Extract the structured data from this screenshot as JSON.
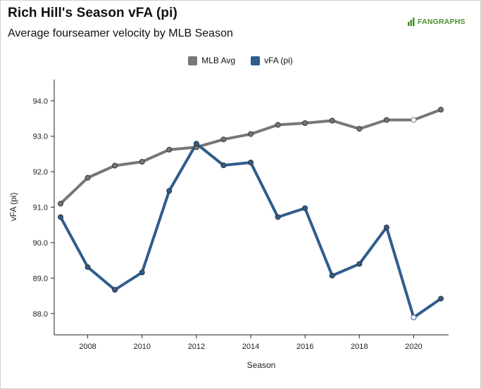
{
  "header": {
    "title": "Rich Hill's Season vFA (pi)",
    "subtitle": "Average fourseamer velocity by MLB Season",
    "brand": "FANGRAPHS"
  },
  "colors": {
    "mlb": "#777777",
    "player": "#2f5d8c",
    "brand": "#4a8f2a"
  },
  "chart_data": {
    "type": "line",
    "xlabel": "Season",
    "ylabel": "vFA (pi)",
    "xlim": [
      2007,
      2021
    ],
    "ylim": [
      87.4,
      94.6
    ],
    "xticks": [
      "2008",
      "2010",
      "2012",
      "2014",
      "2016",
      "2018",
      "2020"
    ],
    "yticks": [
      "88.0",
      "89.0",
      "90.0",
      "91.0",
      "92.0",
      "93.0",
      "94.0"
    ],
    "x": [
      2007,
      2008,
      2009,
      2010,
      2011,
      2012,
      2013,
      2014,
      2015,
      2016,
      2017,
      2018,
      2019,
      2020,
      2021
    ],
    "hollow_x": [
      2020
    ],
    "legend_position": "top-center",
    "grid": false,
    "series": [
      {
        "name": "MLB Avg",
        "values": [
          91.1,
          91.83,
          92.17,
          92.28,
          92.62,
          92.69,
          92.91,
          93.06,
          93.32,
          93.37,
          93.44,
          93.21,
          93.46,
          93.46,
          93.75
        ]
      },
      {
        "name": "vFA (pi)",
        "values": [
          90.72,
          89.31,
          88.67,
          89.16,
          91.46,
          92.79,
          92.18,
          92.26,
          90.72,
          90.97,
          89.07,
          89.4,
          90.43,
          87.89,
          88.42
        ]
      }
    ]
  }
}
